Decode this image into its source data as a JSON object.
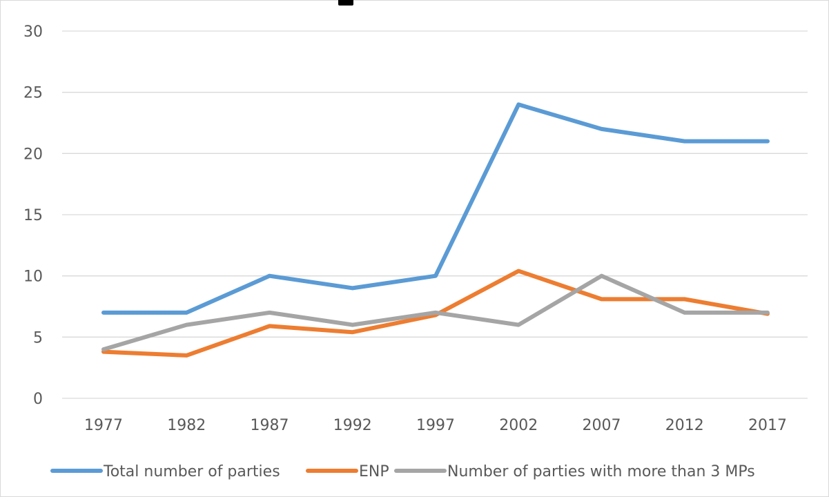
{
  "chart_data": {
    "type": "line",
    "title": "",
    "xlabel": "",
    "ylabel": "",
    "categories": [
      "1977",
      "1982",
      "1987",
      "1992",
      "1997",
      "2002",
      "2007",
      "2012",
      "2017"
    ],
    "ylim": [
      0,
      30
    ],
    "yticks": [
      0,
      5,
      10,
      15,
      20,
      25,
      30
    ],
    "grid": true,
    "legend_position": "bottom",
    "series": [
      {
        "name": "Total number of parties",
        "color": "#5b9bd5",
        "values": [
          7,
          7,
          10,
          9,
          10,
          24,
          22,
          21,
          21
        ]
      },
      {
        "name": "ENP",
        "color": "#ed7d31",
        "values": [
          3.8,
          3.5,
          5.9,
          5.4,
          6.8,
          10.4,
          8.1,
          8.1,
          6.9
        ]
      },
      {
        "name": "Number of parties with more than 3 MPs",
        "color": "#a5a5a5",
        "values": [
          4,
          6,
          7,
          6,
          7,
          6,
          10,
          7,
          7
        ]
      }
    ]
  }
}
